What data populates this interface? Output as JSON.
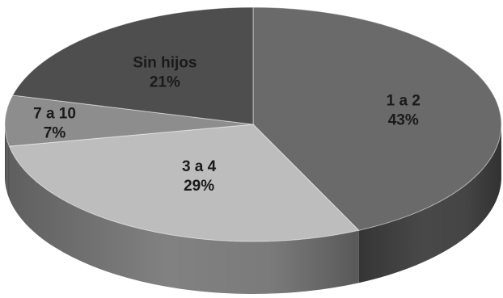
{
  "chart_data": {
    "type": "pie",
    "title": "",
    "style": "3d",
    "categories": [
      "1 a 2",
      "3 a 4",
      "7 a 10",
      "Sin hijos"
    ],
    "values": [
      43,
      29,
      7,
      21
    ],
    "value_labels": [
      "43%",
      "29%",
      "7%",
      "21%"
    ],
    "colors": [
      "#6a6a6a",
      "#bdbdbd",
      "#8d8d8d",
      "#4e4e4e"
    ],
    "legend": "none"
  }
}
